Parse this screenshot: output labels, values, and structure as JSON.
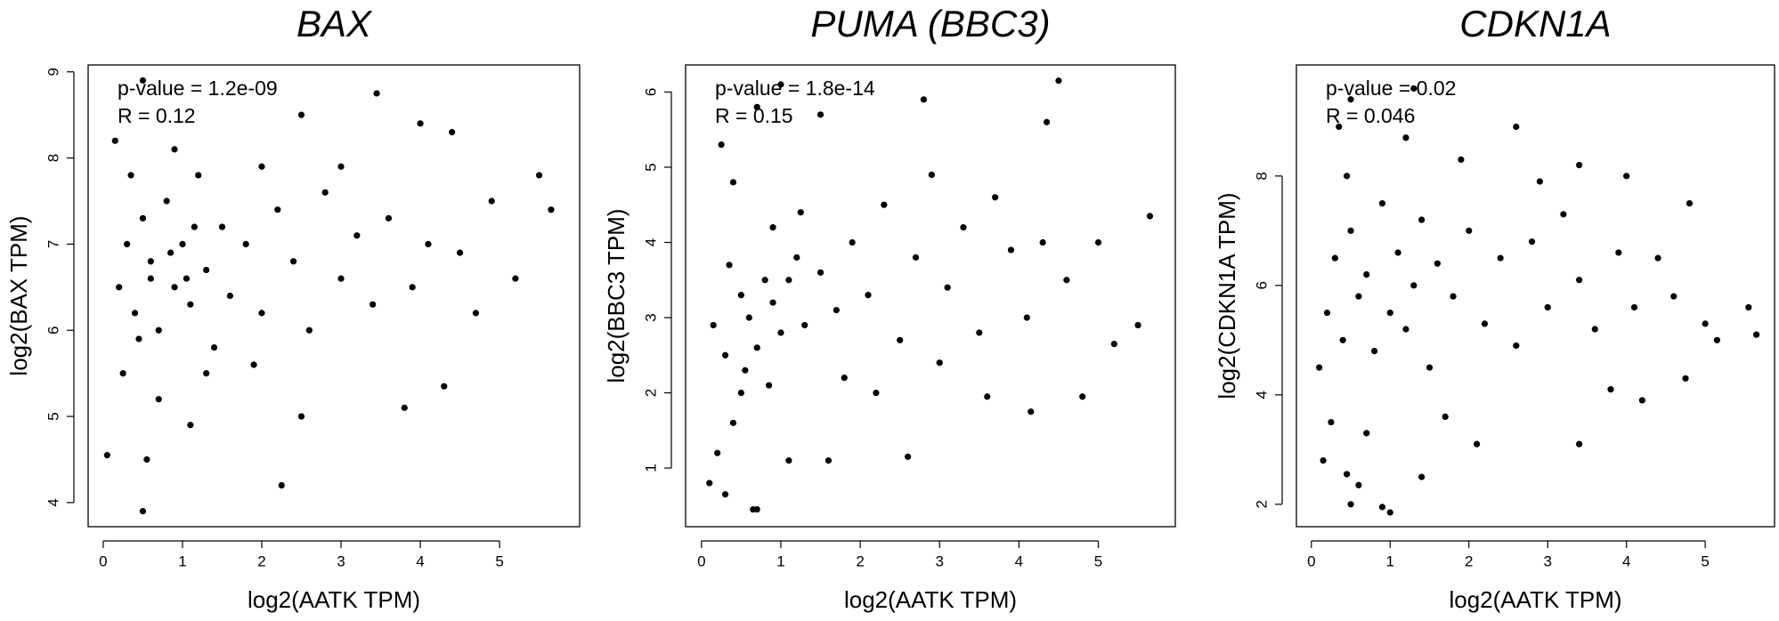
{
  "chart_data": [
    {
      "type": "scatter",
      "title": "BAX",
      "x_label": "log2(AATK TPM)",
      "y_label": "log2(BAX TPM)",
      "annotations": [
        "p-value = 1.2e-09",
        "R = 0.12"
      ],
      "color": "#000000",
      "xlim": [
        -0.19,
        6.01
      ],
      "ylim": [
        3.72,
        9.08
      ],
      "xticks": [
        0,
        1,
        2,
        3,
        4,
        5
      ],
      "yticks": [
        4,
        5,
        6,
        7,
        8,
        9
      ],
      "x": [
        0.05,
        0.5,
        2.25,
        0.55,
        5.65,
        5.5,
        4.0,
        3.45,
        0.5,
        0.15,
        2.5,
        4.4,
        5.2,
        4.9,
        3.8,
        4.3,
        1.1,
        2.5,
        0.2,
        0.3,
        0.4,
        0.5,
        0.6,
        0.7,
        0.8,
        0.9,
        1.0,
        1.1,
        1.2,
        1.3,
        1.4,
        1.5,
        1.6,
        1.8,
        2.0,
        2.2,
        2.4,
        2.6,
        2.8,
        3.0,
        3.2,
        3.4,
        3.6,
        3.9,
        4.1,
        4.5,
        4.7,
        0.25,
        0.7,
        1.3,
        1.9,
        0.35,
        0.9,
        2.0,
        3.0,
        0.6,
        0.85,
        1.05,
        1.15,
        0.45
      ],
      "values": [
        4.55,
        3.9,
        4.2,
        4.5,
        7.4,
        7.8,
        8.4,
        8.75,
        8.9,
        8.2,
        8.5,
        8.3,
        6.6,
        7.5,
        5.1,
        5.35,
        4.9,
        5.0,
        6.5,
        7.0,
        6.2,
        7.3,
        6.8,
        6.0,
        7.5,
        6.5,
        7.0,
        6.3,
        7.8,
        6.7,
        5.8,
        7.2,
        6.4,
        7.0,
        6.2,
        7.4,
        6.8,
        6.0,
        7.6,
        6.6,
        7.1,
        6.3,
        7.3,
        6.5,
        7.0,
        6.9,
        6.2,
        5.5,
        5.2,
        5.5,
        5.6,
        7.8,
        8.1,
        7.9,
        7.9,
        6.6,
        6.9,
        6.6,
        7.2,
        5.9
      ]
    },
    {
      "type": "scatter",
      "title": "PUMA (BBC3)",
      "x_label": "log2(AATK TPM)",
      "y_label": "log2(BBC3 TPM)",
      "annotations": [
        "p-value = 1.8e-14",
        "R = 0.15"
      ],
      "color": "#000000",
      "xlim": [
        -0.2,
        5.97
      ],
      "ylim": [
        0.22,
        6.36
      ],
      "xticks": [
        0,
        1,
        2,
        3,
        4,
        5
      ],
      "yticks": [
        1,
        2,
        3,
        4,
        5,
        6
      ],
      "x": [
        0.1,
        0.3,
        0.65,
        0.7,
        0.2,
        0.4,
        0.5,
        0.3,
        0.6,
        0.8,
        1.0,
        1.2,
        0.9,
        0.4,
        0.7,
        1.0,
        1.5,
        2.8,
        4.5,
        4.35,
        5.65,
        5.5,
        5.2,
        4.8,
        4.15,
        3.6,
        2.6,
        1.6,
        1.1,
        0.15,
        0.5,
        0.7,
        0.9,
        1.1,
        1.3,
        1.5,
        1.7,
        1.9,
        2.1,
        2.3,
        2.5,
        2.7,
        2.9,
        3.1,
        3.3,
        3.5,
        3.7,
        3.9,
        4.1,
        4.3,
        4.6,
        5.0,
        0.35,
        0.55,
        0.85,
        1.25,
        1.8,
        2.2,
        3.0,
        0.25
      ],
      "values": [
        0.8,
        0.65,
        0.45,
        0.45,
        1.2,
        1.6,
        2.0,
        2.5,
        3.0,
        3.5,
        2.8,
        3.8,
        4.2,
        4.8,
        5.8,
        6.1,
        5.7,
        5.9,
        6.15,
        5.6,
        4.35,
        2.9,
        2.65,
        1.95,
        1.75,
        1.95,
        1.15,
        1.1,
        1.1,
        2.9,
        3.3,
        2.6,
        3.2,
        3.5,
        2.9,
        3.6,
        3.1,
        4.0,
        3.3,
        4.5,
        2.7,
        3.8,
        4.9,
        3.4,
        4.2,
        2.8,
        4.6,
        3.9,
        3.0,
        4.0,
        3.5,
        4.0,
        3.7,
        2.3,
        2.1,
        4.4,
        2.2,
        2.0,
        2.4,
        5.3
      ]
    },
    {
      "type": "scatter",
      "title": "CDKN1A",
      "x_label": "log2(AATK TPM)",
      "y_label": "log2(CDKN1A TPM)",
      "annotations": [
        "p-value = 0.02",
        "R = 0.046"
      ],
      "color": "#000000",
      "xlim": [
        -0.19,
        5.88
      ],
      "ylim": [
        1.59,
        10.03
      ],
      "xticks": [
        0,
        1,
        2,
        3,
        4,
        5
      ],
      "yticks": [
        2,
        4,
        6,
        8
      ],
      "x": [
        0.15,
        0.5,
        0.9,
        1.0,
        0.45,
        0.6,
        1.4,
        3.4,
        1.3,
        0.5,
        0.35,
        2.6,
        1.2,
        5.65,
        5.15,
        5.55,
        4.8,
        4.0,
        3.4,
        4.2,
        3.8,
        4.75,
        0.1,
        0.2,
        0.3,
        0.4,
        0.5,
        0.6,
        0.7,
        0.8,
        0.9,
        1.0,
        1.1,
        1.2,
        1.3,
        1.4,
        1.5,
        1.6,
        1.8,
        2.0,
        2.2,
        2.4,
        2.6,
        2.8,
        3.0,
        3.2,
        3.4,
        3.6,
        3.9,
        4.1,
        4.4,
        4.6,
        5.0,
        0.25,
        0.7,
        1.7,
        2.1,
        0.45,
        1.9,
        2.9
      ],
      "values": [
        2.8,
        2.0,
        1.95,
        1.85,
        2.55,
        2.35,
        2.5,
        3.1,
        9.6,
        9.4,
        8.9,
        8.9,
        8.7,
        5.1,
        5.0,
        5.6,
        7.5,
        8.0,
        8.2,
        3.9,
        4.1,
        4.3,
        4.5,
        5.5,
        6.5,
        5.0,
        7.0,
        5.8,
        6.2,
        4.8,
        7.5,
        5.5,
        6.6,
        5.2,
        6.0,
        7.2,
        4.5,
        6.4,
        5.8,
        7.0,
        5.3,
        6.5,
        4.9,
        6.8,
        5.6,
        7.3,
        6.1,
        5.2,
        6.6,
        5.6,
        6.5,
        5.8,
        5.3,
        3.5,
        3.3,
        3.6,
        3.1,
        8.0,
        8.3,
        7.9
      ]
    }
  ]
}
